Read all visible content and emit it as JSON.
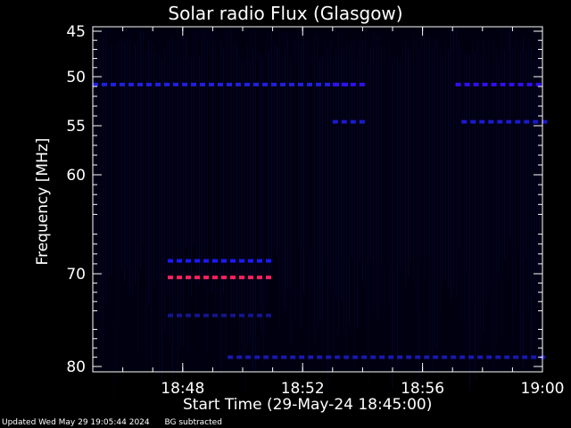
{
  "chart_data": {
    "type": "heatmap",
    "title": "Solar radio Flux (Glasgow)",
    "xlabel": "Start Time (29-May-24 18:45:00)",
    "ylabel": "Frequency [MHz]",
    "x_range_minutes": [
      "18:45",
      "19:00"
    ],
    "y_range_mhz": [
      45,
      80
    ],
    "x_ticks": [
      "18:48",
      "18:52",
      "18:56",
      "19:00"
    ],
    "y_ticks": [
      "45",
      "50",
      "55",
      "60",
      "70",
      "80"
    ],
    "background_subtracted": true,
    "features": [
      {
        "name": "band-51MHz-a",
        "freq_mhz": 50.8,
        "start": "18:45",
        "end": "18:53.5",
        "color": "#2020e0"
      },
      {
        "name": "band-51MHz-b",
        "freq_mhz": 50.8,
        "start": "18:53",
        "end": "18:54",
        "color": "#3010f0"
      },
      {
        "name": "band-51MHz-c",
        "freq_mhz": 50.8,
        "start": "18:57.1",
        "end": "19:00",
        "color": "#3010f0"
      },
      {
        "name": "band-54.6MHz-a",
        "freq_mhz": 54.6,
        "start": "18:53",
        "end": "18:54",
        "color": "#1a1ad0"
      },
      {
        "name": "band-54.6MHz-b",
        "freq_mhz": 54.6,
        "start": "18:57.3",
        "end": "19:00",
        "color": "#1a1ad0"
      },
      {
        "name": "band-68.7MHz",
        "freq_mhz": 68.7,
        "start": "18:47.5",
        "end": "18:50.8",
        "color": "#1a1aff"
      },
      {
        "name": "band-70.4MHz",
        "freq_mhz": 70.4,
        "start": "18:47.5",
        "end": "18:50.8",
        "color": "#ff2060"
      },
      {
        "name": "band-74.5MHz",
        "freq_mhz": 74.5,
        "start": "18:47.5",
        "end": "18:50.8",
        "color": "#14148a"
      },
      {
        "name": "band-79MHz",
        "freq_mhz": 79.0,
        "start": "18:49.5",
        "end": "19:00",
        "color": "#1818b0"
      }
    ]
  },
  "footer": {
    "updated": "Updated Wed May 29 19:05:44 2024",
    "note": "BG subtracted"
  },
  "colors": {
    "background": "#000000",
    "plot_background": "#000010",
    "axis": "#ffffff",
    "faint_noise": "#0a0a4a"
  }
}
